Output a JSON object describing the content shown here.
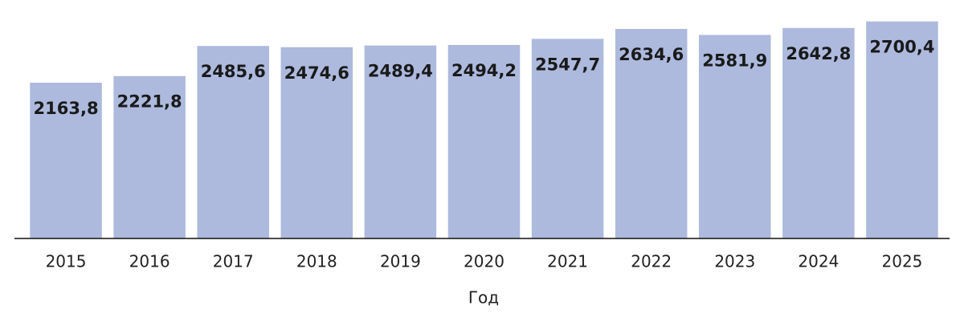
{
  "chart_data": {
    "type": "bar",
    "x_label": "Год",
    "categories": [
      "2015",
      "2016",
      "2017",
      "2018",
      "2019",
      "2020",
      "2021",
      "2022",
      "2023",
      "2024",
      "2025"
    ],
    "values": [
      2163.8,
      2221.8,
      2485.6,
      2474.6,
      2489.4,
      2494.2,
      2547.7,
      2634.6,
      2581.9,
      2642.8,
      2700.4
    ],
    "value_labels": [
      "2163,8",
      "2221,8",
      "2485,6",
      "2474,6",
      "2489,4",
      "2494,2",
      "2547,7",
      "2634,6",
      "2581,9",
      "2642,8",
      "2700,4"
    ],
    "color": "#adbade",
    "ylim": [
      800,
      2800
    ]
  }
}
